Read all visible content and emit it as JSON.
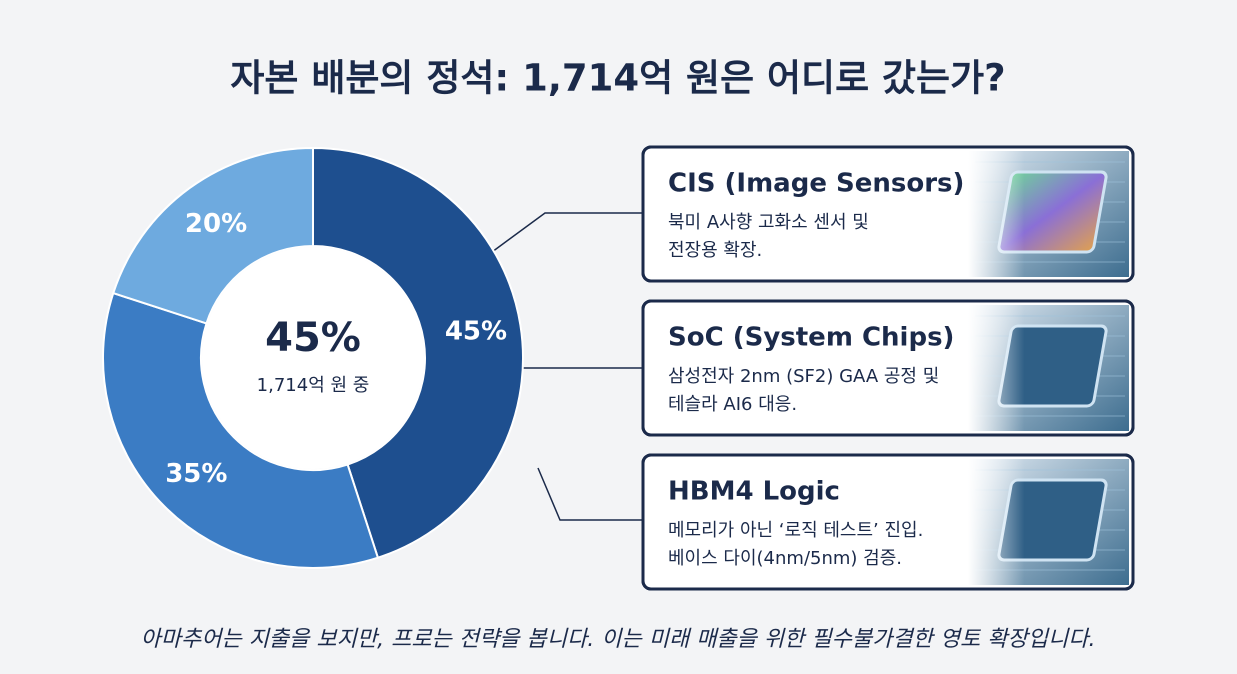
{
  "chart_data": {
    "type": "donut",
    "title": "자본 배분의 정석: 1,714억 원은 어디로 갔는가?",
    "values": [
      45,
      35,
      20
    ],
    "value_labels": [
      "45%",
      "35%",
      "20%"
    ],
    "colors": [
      "#1e4f8f",
      "#3b7cc4",
      "#6eaadf"
    ],
    "center": {
      "value": 45,
      "label": "45%",
      "caption": "1,714억 원 중"
    },
    "cards": [
      {
        "title": "CIS (Image Sensors)",
        "lines": [
          "북미 A사향 고화소 센서 및",
          "전장용 확장."
        ]
      },
      {
        "title": "SoC (System Chips)",
        "lines": [
          "삼성전자 2nm (SF2) GAA 공정 및",
          "테슬라 AI6 대응."
        ]
      },
      {
        "title": "HBM4 Logic",
        "lines": [
          "메모리가 아닌 ‘로직 테스트’ 진입.",
          "베이스 다이(4nm/5nm) 검증."
        ]
      }
    ],
    "footer": "아마추어는 지출을 보지만, 프로는 전략을 봅니다. 이는 미래 매출을 위한 필수불가결한 영토 확장입니다."
  }
}
